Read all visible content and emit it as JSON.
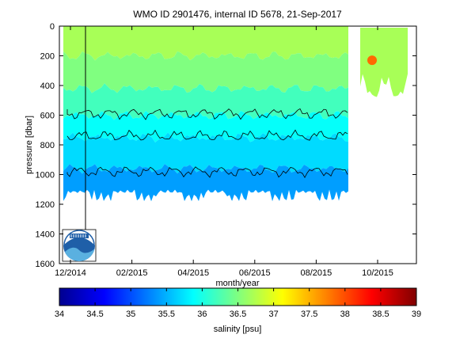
{
  "chart_data": {
    "type": "heatmap",
    "title": "WMO ID 2901476, internal ID 5678, 21-Sep-2017",
    "xlabel": "month/year",
    "ylabel": "pressure [dbar]",
    "x_ticks": [
      "12/2014",
      "02/2015",
      "04/2015",
      "06/2015",
      "08/2015",
      "10/2015"
    ],
    "y_ticks": [
      "0",
      "200",
      "400",
      "600",
      "800",
      "1000",
      "1200",
      "1400",
      "1600"
    ],
    "ylim": [
      0,
      1600
    ],
    "y_reversed": true,
    "colorbar": {
      "label": "salinity [psu]",
      "colormap": "jet",
      "range": [
        34,
        39
      ],
      "ticks": [
        "34",
        "34.5",
        "35",
        "35.5",
        "36",
        "36.5",
        "37",
        "37.5",
        "38",
        "38.5",
        "39"
      ]
    },
    "salinity_layers": [
      {
        "pressure_top": 0,
        "pressure_bottom": 200,
        "salinity": 36.7
      },
      {
        "pressure_top": 200,
        "pressure_bottom": 420,
        "salinity": 36.5
      },
      {
        "pressure_top": 420,
        "pressure_bottom": 600,
        "salinity": 36.2
      },
      {
        "pressure_top": 600,
        "pressure_bottom": 750,
        "salinity": 35.9
      },
      {
        "pressure_top": 750,
        "pressure_bottom": 960,
        "salinity": 35.7
      },
      {
        "pressure_top": 960,
        "pressure_bottom": 1200,
        "salinity": 35.4
      }
    ],
    "contour_pressures": [
      590,
      740,
      980
    ],
    "grid": false,
    "colors": {
      "contour_line": "#000000",
      "noaa_logo": "#1f5fa8"
    }
  }
}
